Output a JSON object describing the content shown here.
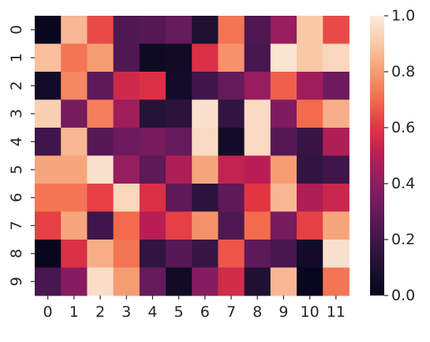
{
  "chart_data": {
    "type": "heatmap",
    "x_labels": [
      "0",
      "1",
      "2",
      "3",
      "4",
      "5",
      "6",
      "7",
      "8",
      "9",
      "10",
      "11"
    ],
    "y_labels": [
      "0",
      "1",
      "2",
      "3",
      "4",
      "5",
      "6",
      "7",
      "8",
      "9"
    ],
    "values": [
      [
        0.02,
        0.86,
        0.64,
        0.24,
        0.26,
        0.3,
        0.1,
        0.72,
        0.24,
        0.42,
        0.9,
        0.64
      ],
      [
        0.88,
        0.72,
        0.8,
        0.24,
        0.04,
        0.05,
        0.58,
        0.78,
        0.22,
        0.98,
        0.9,
        0.94
      ],
      [
        0.06,
        0.76,
        0.28,
        0.55,
        0.58,
        0.06,
        0.2,
        0.3,
        0.42,
        0.68,
        0.44,
        0.32
      ],
      [
        0.92,
        0.34,
        0.74,
        0.44,
        0.12,
        0.14,
        0.97,
        0.16,
        0.95,
        0.36,
        0.7,
        0.84
      ],
      [
        0.2,
        0.86,
        0.26,
        0.32,
        0.34,
        0.3,
        0.95,
        0.06,
        0.95,
        0.26,
        0.18,
        0.48
      ],
      [
        0.82,
        0.82,
        0.97,
        0.42,
        0.28,
        0.48,
        0.82,
        0.52,
        0.5,
        0.8,
        0.16,
        0.2
      ],
      [
        0.72,
        0.72,
        0.62,
        0.94,
        0.58,
        0.28,
        0.14,
        0.28,
        0.6,
        0.86,
        0.48,
        0.54
      ],
      [
        0.62,
        0.82,
        0.2,
        0.7,
        0.5,
        0.62,
        0.78,
        0.24,
        0.7,
        0.34,
        0.62,
        0.82
      ],
      [
        0.01,
        0.58,
        0.84,
        0.72,
        0.16,
        0.26,
        0.18,
        0.66,
        0.28,
        0.22,
        0.06,
        0.97
      ],
      [
        0.22,
        0.38,
        0.96,
        0.8,
        0.3,
        0.05,
        0.38,
        0.56,
        0.1,
        0.86,
        0.02,
        0.72
      ]
    ],
    "colorbar": {
      "min": 0.0,
      "max": 1.0,
      "ticks": [
        "0.0",
        "0.2",
        "0.4",
        "0.6",
        "0.8",
        "1.0"
      ]
    },
    "colormap": "rocket"
  }
}
